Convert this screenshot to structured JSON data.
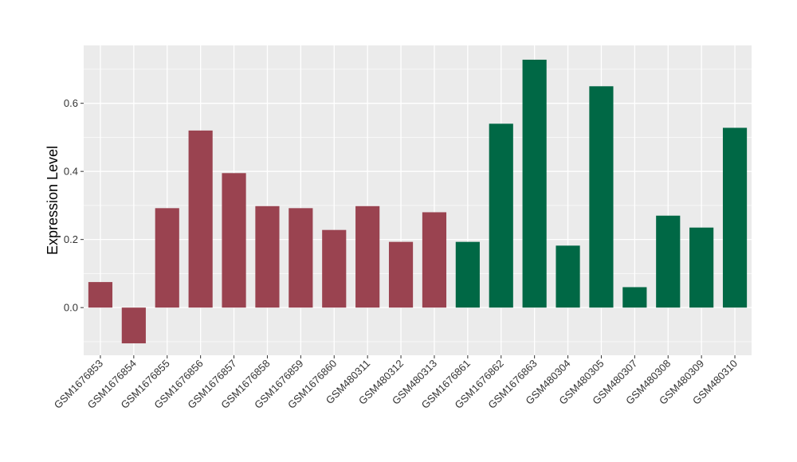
{
  "chart_data": {
    "type": "bar",
    "title": "",
    "xlabel": "",
    "ylabel": "Expression Level",
    "ylim": [
      -0.14,
      0.77
    ],
    "yticks": [
      0.0,
      0.2,
      0.4,
      0.6
    ],
    "ytick_labels": [
      "0.0",
      "0.2",
      "0.4",
      "0.6"
    ],
    "grid": true,
    "background": "#ebebeb",
    "grid_color": "#ffffff",
    "categories": [
      "GSM1676853",
      "GSM1676854",
      "GSM1676855",
      "GSM1676856",
      "GSM1676857",
      "GSM1676858",
      "GSM1676859",
      "GSM1676860",
      "GSM480311",
      "GSM480312",
      "GSM480313",
      "GSM1676861",
      "GSM1676862",
      "GSM1676863",
      "GSM480304",
      "GSM480305",
      "GSM480307",
      "GSM480308",
      "GSM480309",
      "GSM480310"
    ],
    "values": [
      0.075,
      -0.105,
      0.292,
      0.52,
      0.395,
      0.298,
      0.292,
      0.228,
      0.298,
      0.193,
      0.28,
      0.193,
      0.54,
      0.728,
      0.182,
      0.65,
      0.06,
      0.27,
      0.235,
      0.528
    ],
    "bar_colors": [
      "#9a4350",
      "#9a4350",
      "#9a4350",
      "#9a4350",
      "#9a4350",
      "#9a4350",
      "#9a4350",
      "#9a4350",
      "#9a4350",
      "#9a4350",
      "#9a4350",
      "#006845",
      "#006845",
      "#006845",
      "#006845",
      "#006845",
      "#006845",
      "#006845",
      "#006845",
      "#006845"
    ]
  }
}
